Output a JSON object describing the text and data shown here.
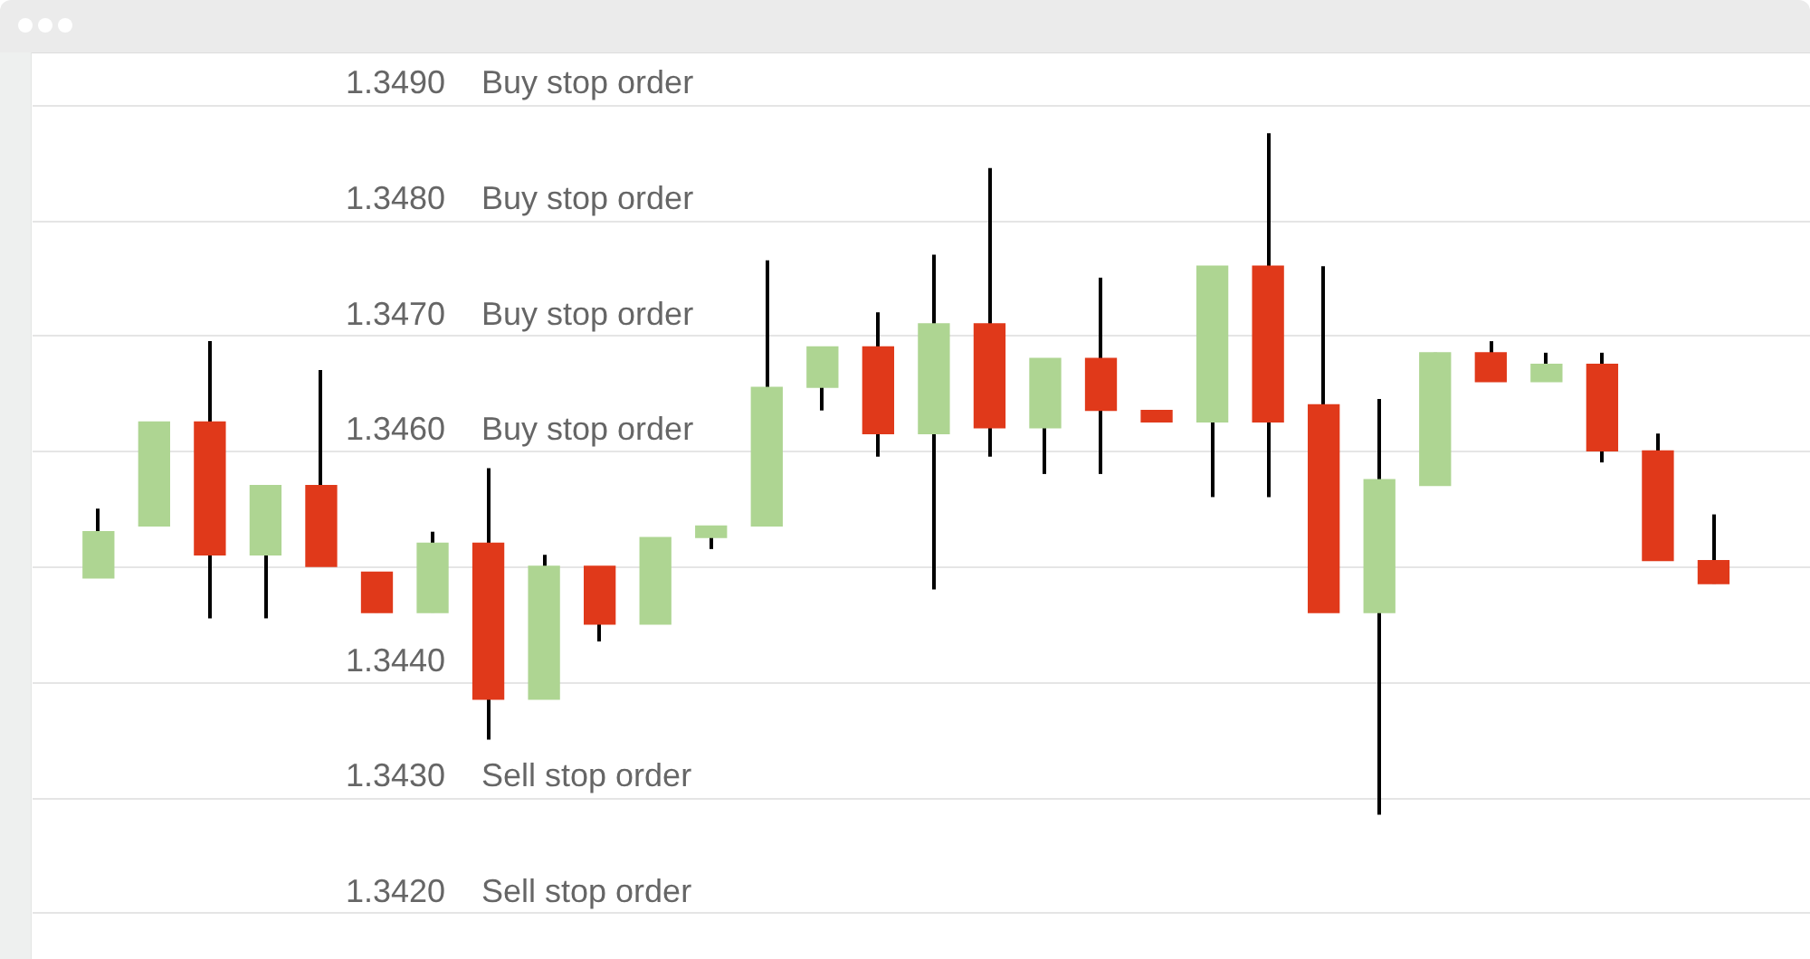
{
  "chart_data": {
    "type": "candlestick",
    "categories": [
      null,
      null,
      null,
      null,
      null,
      null,
      null,
      null,
      null,
      null,
      null,
      null,
      null,
      null,
      null,
      null,
      null,
      null,
      null,
      null,
      null,
      null,
      null,
      null,
      null,
      null,
      null,
      null,
      null,
      null
    ],
    "ohlc": [
      [
        1.3449,
        1.3455,
        1.3449,
        1.3453
      ],
      [
        1.34535,
        1.34625,
        1.34535,
        1.34625
      ],
      [
        1.34625,
        1.34695,
        1.34455,
        1.3451
      ],
      [
        1.3451,
        1.3457,
        1.34455,
        1.3457
      ],
      [
        1.3457,
        1.3467,
        1.345,
        1.345
      ],
      [
        1.34495,
        1.34495,
        1.3446,
        1.3446
      ],
      [
        1.3446,
        1.3453,
        1.3446,
        1.3452
      ],
      [
        1.3452,
        1.34585,
        1.3435,
        1.34385
      ],
      [
        1.34385,
        1.3451,
        1.34385,
        1.345
      ],
      [
        1.345,
        1.345,
        1.34435,
        1.3445
      ],
      [
        1.3445,
        1.34525,
        1.3445,
        1.34525
      ],
      [
        1.34525,
        1.34535,
        1.34515,
        1.34535
      ],
      [
        1.34535,
        1.34765,
        1.34535,
        1.34655
      ],
      [
        1.34655,
        1.3469,
        1.34635,
        1.3469
      ],
      [
        1.3469,
        1.3472,
        1.34595,
        1.34615
      ],
      [
        1.34615,
        1.3477,
        1.3448,
        1.3471
      ],
      [
        1.3471,
        1.34845,
        1.34595,
        1.3462
      ],
      [
        1.3462,
        1.3468,
        1.3458,
        1.3468
      ],
      [
        1.3468,
        1.3475,
        1.3458,
        1.34635
      ],
      [
        1.34635,
        1.34635,
        1.34625,
        1.34625
      ],
      [
        1.34625,
        1.3476,
        1.3456,
        1.3476
      ],
      [
        1.3476,
        1.34875,
        1.3456,
        1.34625
      ],
      [
        1.3464,
        1.3476,
        1.3446,
        1.3446
      ],
      [
        1.3446,
        1.34645,
        1.34285,
        1.34575
      ],
      [
        1.3457,
        1.34685,
        1.3457,
        1.34685
      ],
      [
        1.34685,
        1.34695,
        1.3466,
        1.3466
      ],
      [
        1.3466,
        1.34685,
        1.3466,
        1.34675
      ],
      [
        1.34675,
        1.34685,
        1.3459,
        1.346
      ],
      [
        1.346,
        1.34615,
        1.34505,
        1.34505
      ],
      [
        1.34505,
        1.34545,
        1.34485,
        1.34485
      ]
    ],
    "colors": [
      "#aed592",
      "#aed592",
      "#e0391a",
      "#aed592",
      "#e0391a",
      "#e0391a",
      "#aed592",
      "#e0391a",
      "#aed592",
      "#e0391a",
      "#aed592",
      "#aed592",
      "#aed592",
      "#aed592",
      "#e0391a",
      "#aed592",
      "#e0391a",
      "#aed592",
      "#e0391a",
      "#e0391a",
      "#aed592",
      "#e0391a",
      "#e0391a",
      "#aed592",
      "#aed592",
      "#e0391a",
      "#aed592",
      "#e0391a",
      "#e0391a",
      "#e0391a"
    ],
    "ylim": [
      1.3416,
      1.34945
    ],
    "yticks": [
      {
        "value": 1.349,
        "label": "1.3490"
      },
      {
        "value": 1.348,
        "label": "1.3480"
      },
      {
        "value": 1.347,
        "label": "1.3470"
      },
      {
        "value": 1.346,
        "label": "1.3460"
      },
      {
        "value": 1.345,
        "label": null
      },
      {
        "value": 1.344,
        "label": "1.3440"
      },
      {
        "value": 1.343,
        "label": "1.3430"
      },
      {
        "value": 1.342,
        "label": "1.3420"
      }
    ],
    "tick_labels": "y",
    "ref_lines": [
      {
        "axis": "y",
        "value": 1.349,
        "label": "Buy stop order",
        "color": "#e5e5e5"
      },
      {
        "axis": "y",
        "value": 1.348,
        "label": "Buy stop order",
        "color": "#e5e5e5"
      },
      {
        "axis": "y",
        "value": 1.347,
        "label": "Buy stop order",
        "color": "#e5e5e5"
      },
      {
        "axis": "y",
        "value": 1.346,
        "label": "Buy stop order",
        "color": "#e5e5e5"
      },
      {
        "axis": "y",
        "value": 1.345,
        "color": "#e5e5e5"
      },
      {
        "axis": "y",
        "value": 1.344,
        "color": "#e5e5e5"
      },
      {
        "axis": "y",
        "value": 1.343,
        "label": "Sell stop order",
        "color": "#e5e5e5"
      },
      {
        "axis": "y",
        "value": 1.342,
        "label": "Sell stop order",
        "color": "#e5e5e5"
      }
    ]
  }
}
